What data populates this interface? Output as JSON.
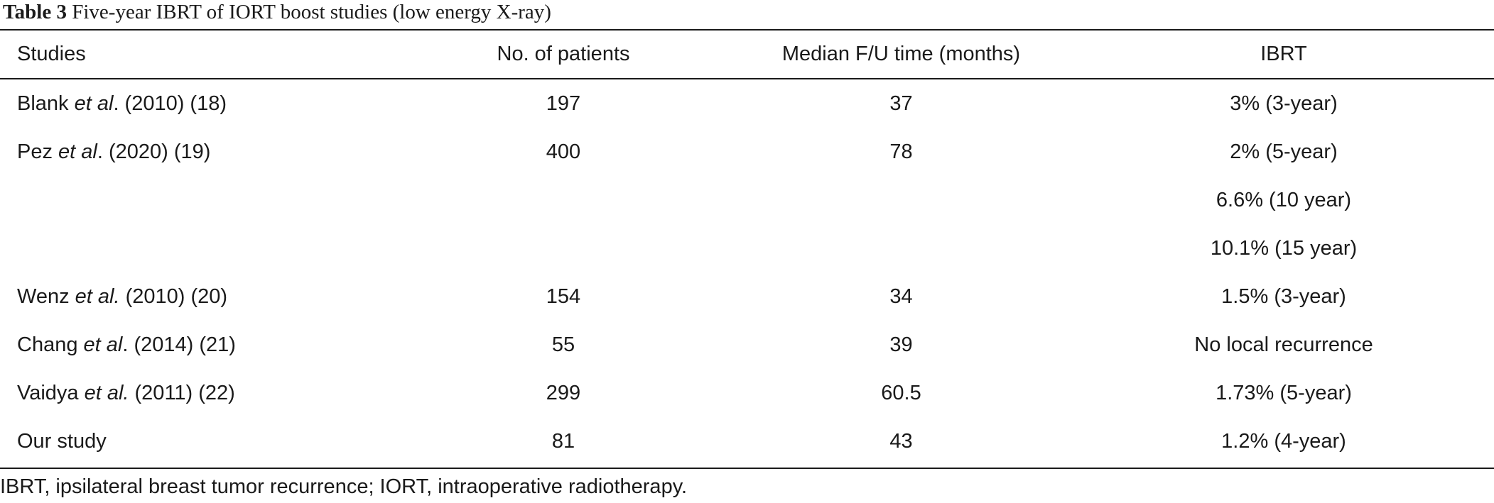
{
  "caption": {
    "label": "Table 3",
    "text": "Five-year IBRT of IORT boost studies (low energy X-ray)"
  },
  "headers": {
    "studies": "Studies",
    "patients": "No. of patients",
    "followup": "Median F/U time (months)",
    "ibrt": "IBRT"
  },
  "rows": [
    {
      "author": "Blank",
      "etal": "et al",
      "rest": ". (2010) (18)",
      "patients": "197",
      "followup": "37",
      "ibrt": "3% (3-year)"
    },
    {
      "author": "Pez",
      "etal": "et al",
      "rest": ". (2020) (19)",
      "patients": "400",
      "followup": "78",
      "ibrt": "2% (5-year)"
    },
    {
      "author": "",
      "etal": "",
      "rest": "",
      "patients": "",
      "followup": "",
      "ibrt": "6.6% (10 year)"
    },
    {
      "author": "",
      "etal": "",
      "rest": "",
      "patients": "",
      "followup": "",
      "ibrt": "10.1% (15 year)"
    },
    {
      "author": "Wenz",
      "etal": "et al.",
      "rest": " (2010) (20)",
      "patients": "154",
      "followup": "34",
      "ibrt": "1.5% (3-year)"
    },
    {
      "author": "Chang",
      "etal": "et al",
      "rest": ". (2014) (21)",
      "patients": "55",
      "followup": "39",
      "ibrt": "No local recurrence"
    },
    {
      "author": "Vaidya",
      "etal": "et al.",
      "rest": " (2011) (22)",
      "patients": "299",
      "followup": "60.5",
      "ibrt": "1.73% (5-year)"
    },
    {
      "author": "Our study",
      "etal": "",
      "rest": "",
      "patients": "81",
      "followup": "43",
      "ibrt": "1.2% (4-year)"
    }
  ],
  "footnote": "IBRT, ipsilateral breast tumor recurrence; IORT, intraoperative radiotherapy."
}
